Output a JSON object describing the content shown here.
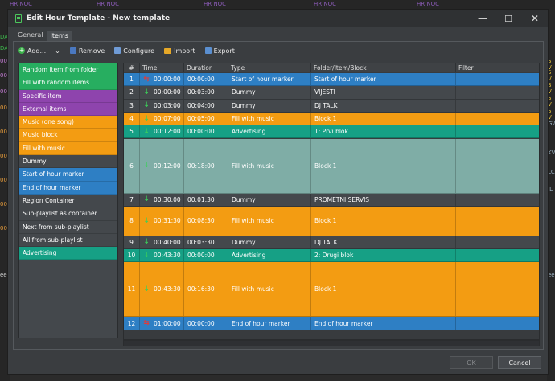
{
  "background": {
    "tags": [
      "HR NOC",
      "HR NOC",
      "HR NOC",
      "HR NOC",
      "HR NOC"
    ],
    "left_ticks": [
      "DAI",
      "DA",
      "00",
      "00",
      "00",
      "00",
      "00",
      "00",
      "00",
      "00",
      "00",
      "eel"
    ],
    "right_ticks": [
      "S V",
      "S V",
      "S V",
      "S V",
      "S V",
      "GW",
      "KV",
      "LC",
      "IL",
      "eel"
    ]
  },
  "window": {
    "title": "Edit Hour Template - New template",
    "minimize_glyph": "—",
    "maximize_glyph": "☐",
    "close_glyph": "✕"
  },
  "tabs": [
    {
      "label": "General",
      "active": false
    },
    {
      "label": "Items",
      "active": true
    }
  ],
  "toolbar": {
    "add": "Add...",
    "add_chevron": "⌄",
    "remove": "Remove",
    "configure": "Configure",
    "import": "Import",
    "export": "Export"
  },
  "palette": [
    {
      "label": "Random item from folder",
      "color": "#27ae60"
    },
    {
      "label": "Fill with random items",
      "color": "#27ae60"
    },
    {
      "label": "Specific item",
      "color": "#8e44ad"
    },
    {
      "label": "External items",
      "color": "#8e44ad"
    },
    {
      "label": "Music (one song)",
      "color": "#f39c12"
    },
    {
      "label": "Music block",
      "color": "#f39c12"
    },
    {
      "label": "Fill with music",
      "color": "#f39c12"
    },
    {
      "label": "Dummy",
      "color": "#44484c"
    },
    {
      "label": "Start of hour marker",
      "color": "#2e7fc4"
    },
    {
      "label": "End of hour marker",
      "color": "#2e7fc4"
    },
    {
      "label": "Region Container",
      "color": "#44484c"
    },
    {
      "label": "Sub-playlist as container",
      "color": "#44484c"
    },
    {
      "label": "Next from sub-playlist",
      "color": "#44484c"
    },
    {
      "label": "All from sub-playlist",
      "color": "#44484c"
    },
    {
      "label": "Advertising",
      "color": "#16a085"
    }
  ],
  "grid": {
    "columns": [
      "#",
      "Time",
      "Duration",
      "Type",
      "Folder/Item/Block",
      "Filter"
    ],
    "rows": [
      {
        "num": "1",
        "time": "00:00:00",
        "duration": "00:00:00",
        "type": "Start of hour marker",
        "item": "Start of hour marker",
        "filter": "",
        "color": "#2e7fc4",
        "arrow": "red",
        "arrow_glyph": "⇆",
        "tall": false
      },
      {
        "num": "2",
        "time": "00:00:00",
        "duration": "00:03:00",
        "type": "Dummy",
        "item": "VIJESTI",
        "filter": "",
        "color": "#44484c",
        "arrow": "green",
        "arrow_glyph": "↓",
        "tall": false
      },
      {
        "num": "3",
        "time": "00:03:00",
        "duration": "00:04:00",
        "type": "Dummy",
        "item": "DJ TALK",
        "filter": "",
        "color": "#44484c",
        "arrow": "green",
        "arrow_glyph": "↓",
        "tall": false
      },
      {
        "num": "4",
        "time": "00:07:00",
        "duration": "00:05:00",
        "type": "Fill with music",
        "item": "Block 1",
        "filter": "",
        "color": "#f39c12",
        "arrow": "green",
        "arrow_glyph": "↓",
        "tall": false
      },
      {
        "num": "5",
        "time": "00:12:00",
        "duration": "00:00:00",
        "type": "Advertising",
        "item": "1: Prvi blok",
        "filter": "",
        "color": "#16a085",
        "arrow": "green",
        "arrow_glyph": "↓",
        "tall": false
      },
      {
        "num": "6",
        "time": "00:12:00",
        "duration": "00:18:00",
        "type": "Fill with music",
        "item": "Block 1",
        "filter": "",
        "color": "#7fada6",
        "arrow": "green",
        "arrow_glyph": "↓",
        "tall": true
      },
      {
        "num": "7",
        "time": "00:30:00",
        "duration": "00:01:30",
        "type": "Dummy",
        "item": "PROMETNI SERVIS",
        "filter": "",
        "color": "#44484c",
        "arrow": "green",
        "arrow_glyph": "↓",
        "tall": false
      },
      {
        "num": "8",
        "time": "00:31:30",
        "duration": "00:08:30",
        "type": "Fill with music",
        "item": "Block 1",
        "filter": "",
        "color": "#f39c12",
        "arrow": "green",
        "arrow_glyph": "↓",
        "tall": "mid"
      },
      {
        "num": "9",
        "time": "00:40:00",
        "duration": "00:03:30",
        "type": "Dummy",
        "item": "DJ TALK",
        "filter": "",
        "color": "#44484c",
        "arrow": "green",
        "arrow_glyph": "↓",
        "tall": false
      },
      {
        "num": "10",
        "time": "00:43:30",
        "duration": "00:00:00",
        "type": "Advertising",
        "item": "2: Drugi blok",
        "filter": "",
        "color": "#16a085",
        "arrow": "green",
        "arrow_glyph": "↓",
        "tall": false
      },
      {
        "num": "11",
        "time": "00:43:30",
        "duration": "00:16:30",
        "type": "Fill with music",
        "item": "Block 1",
        "filter": "",
        "color": "#f39c12",
        "arrow": "green",
        "arrow_glyph": "↓",
        "tall": true
      },
      {
        "num": "12",
        "time": "01:00:00",
        "duration": "00:00:00",
        "type": "End of hour marker",
        "item": "End of hour marker",
        "filter": "",
        "color": "#2e7fc4",
        "arrow": "red",
        "arrow_glyph": "⇆",
        "tall": false
      }
    ]
  },
  "buttons": {
    "ok": "OK",
    "cancel": "Cancel"
  }
}
